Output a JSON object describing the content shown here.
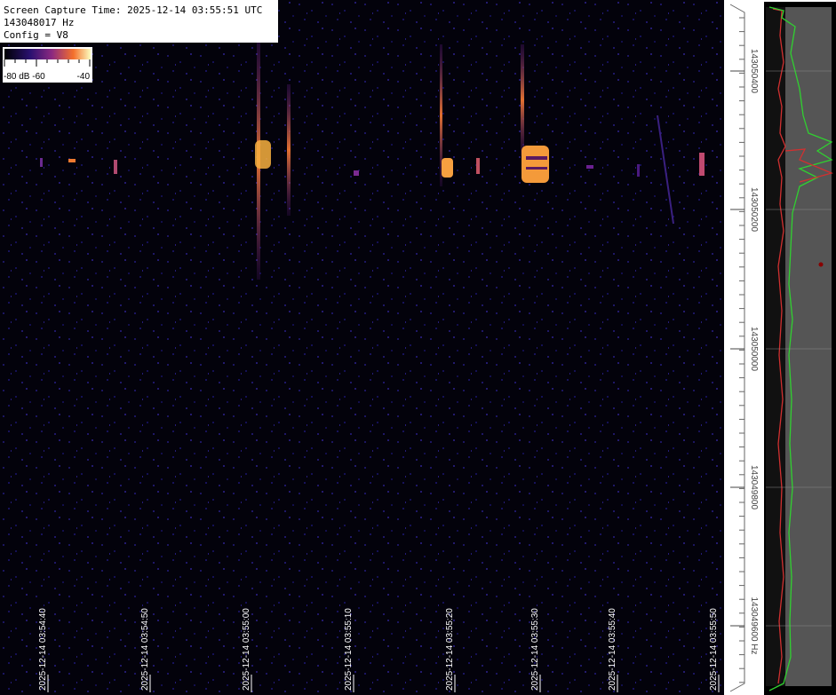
{
  "header": {
    "capture_time": "Screen Capture Time: 2025-12-14 03:55:51 UTC",
    "frequency": "143048017 Hz",
    "config": "Config = V8"
  },
  "colorbar": {
    "left_label": "-80 dB -60",
    "right_label": "-40"
  },
  "time_axis": {
    "labels": [
      "2025-12-14 03:54:40",
      "2025-12-14 03:54:50",
      "2025-12-14 03:55:00",
      "2025-12-14 03:55:10",
      "2025-12-14 03:55:20",
      "2025-12-14 03:55:30",
      "2025-12-14 03:55:40",
      "2025-12-14 03:55:50"
    ]
  },
  "frequency_axis": {
    "labels": [
      "143050400",
      "143050200",
      "143050000",
      "143049800",
      "143049600 Hz"
    ]
  }
}
